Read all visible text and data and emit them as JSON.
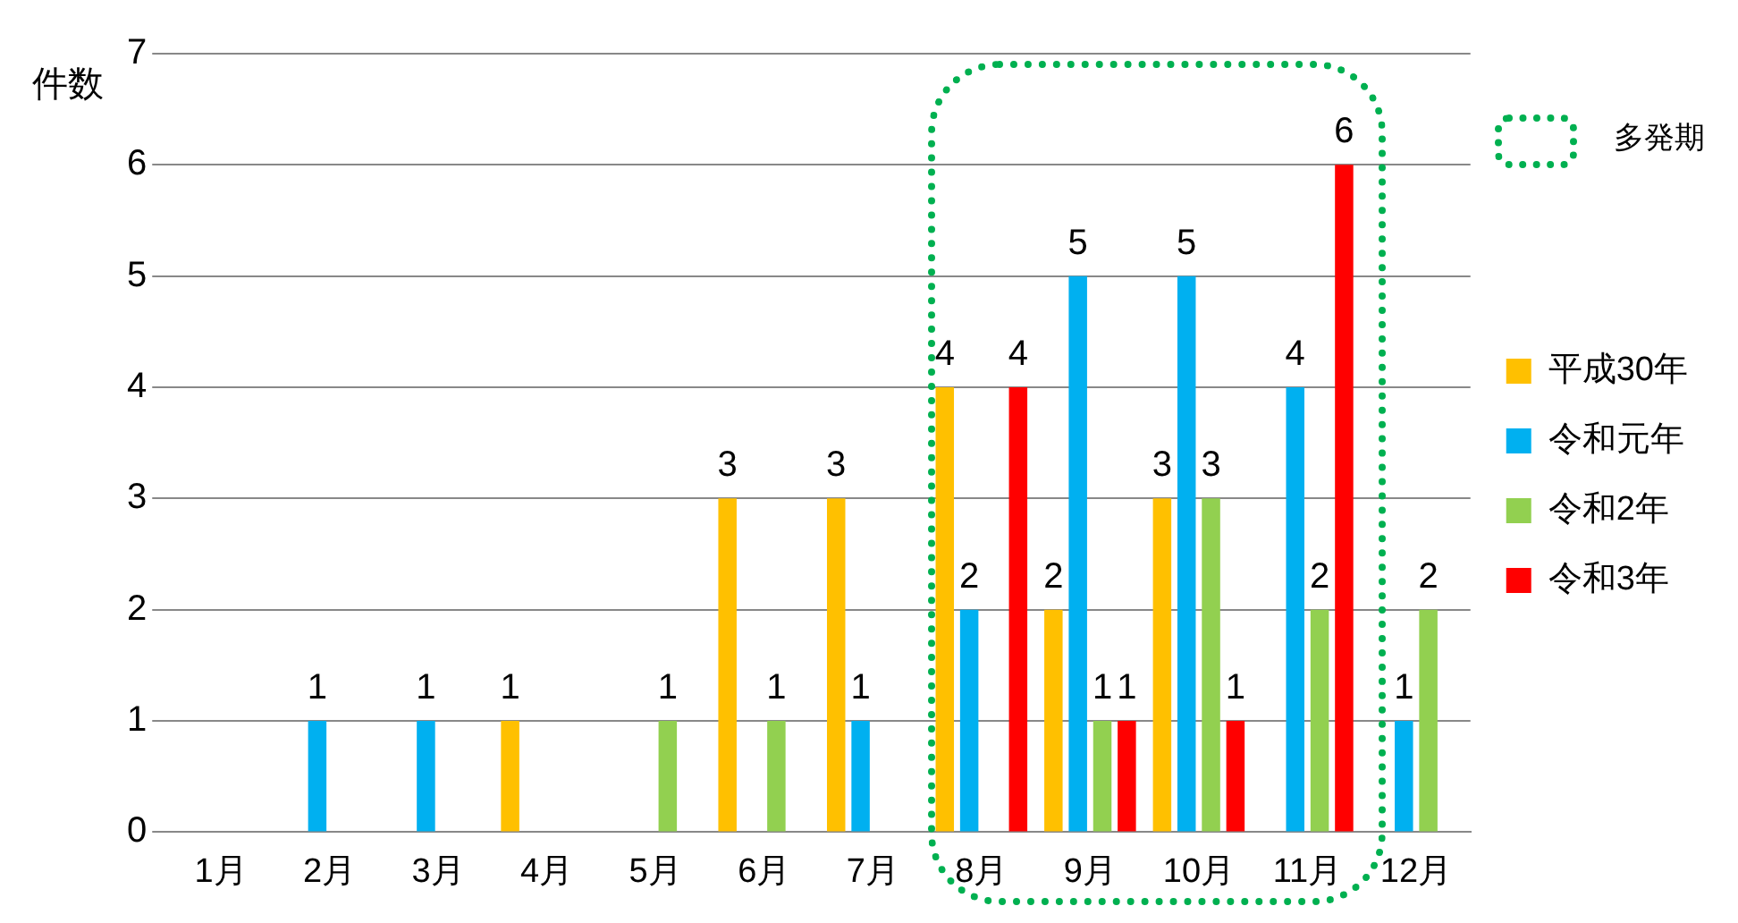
{
  "chart_data": {
    "type": "bar",
    "ylabel": "件数",
    "categories": [
      "1月",
      "2月",
      "3月",
      "4月",
      "5月",
      "6月",
      "7月",
      "8月",
      "9月",
      "10月",
      "11月",
      "12月"
    ],
    "series": [
      {
        "name": "平成30年",
        "color": "#ffc000",
        "values": [
          null,
          null,
          null,
          1,
          null,
          3,
          3,
          4,
          2,
          3,
          null,
          null
        ]
      },
      {
        "name": "令和元年",
        "color": "#00b0f0",
        "values": [
          null,
          1,
          1,
          null,
          null,
          null,
          1,
          2,
          5,
          5,
          4,
          1
        ]
      },
      {
        "name": "令和2年",
        "color": "#92d050",
        "values": [
          null,
          null,
          null,
          null,
          1,
          1,
          null,
          null,
          1,
          3,
          2,
          2
        ]
      },
      {
        "name": "令和3年",
        "color": "#ff0000",
        "values": [
          null,
          null,
          null,
          null,
          null,
          null,
          null,
          4,
          1,
          1,
          6,
          null
        ]
      }
    ],
    "ylim": [
      0,
      7
    ],
    "yticks": [
      0,
      1,
      2,
      3,
      4,
      5,
      6,
      7
    ],
    "grid": "y",
    "legend": "right",
    "data_labels": true,
    "annotations": [
      "多発期"
    ]
  }
}
